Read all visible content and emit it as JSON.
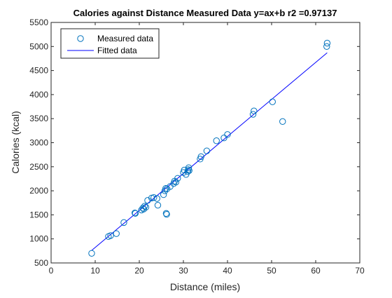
{
  "chart_data": {
    "type": "scatter",
    "title": "Calories against Distance Measured Data y=ax+b  r2 =0.97137",
    "xlabel": "Distance (miles)",
    "ylabel": "Calories (kcal)",
    "xlim": [
      0,
      70
    ],
    "ylim": [
      500,
      5500
    ],
    "xticks": [
      0,
      10,
      20,
      30,
      40,
      50,
      60,
      70
    ],
    "yticks": [
      500,
      1000,
      1500,
      2000,
      2500,
      3000,
      3500,
      4000,
      4500,
      5000,
      5500
    ],
    "grid": false,
    "legend_position": "top-left",
    "series": [
      {
        "name": "Measured data",
        "kind": "markers",
        "marker": "circle",
        "color": "#0072bd",
        "points": [
          [
            9.2,
            700
          ],
          [
            13.0,
            1050
          ],
          [
            13.5,
            1070
          ],
          [
            14.8,
            1110
          ],
          [
            16.5,
            1340
          ],
          [
            19.0,
            1540
          ],
          [
            19.1,
            1530
          ],
          [
            20.5,
            1600
          ],
          [
            20.8,
            1640
          ],
          [
            21.0,
            1620
          ],
          [
            21.2,
            1680
          ],
          [
            21.5,
            1660
          ],
          [
            21.9,
            1800
          ],
          [
            22.8,
            1850
          ],
          [
            23.3,
            1860
          ],
          [
            24.0,
            1840
          ],
          [
            24.2,
            1700
          ],
          [
            25.5,
            1920
          ],
          [
            25.8,
            2000
          ],
          [
            26.0,
            2050
          ],
          [
            26.3,
            2040
          ],
          [
            26.1,
            1530
          ],
          [
            26.2,
            1510
          ],
          [
            27.0,
            2090
          ],
          [
            27.8,
            2150
          ],
          [
            28.0,
            2200
          ],
          [
            28.3,
            2180
          ],
          [
            28.7,
            2260
          ],
          [
            30.0,
            2380
          ],
          [
            30.2,
            2430
          ],
          [
            30.6,
            2340
          ],
          [
            31.0,
            2400
          ],
          [
            31.1,
            2440
          ],
          [
            31.2,
            2480
          ],
          [
            31.3,
            2420
          ],
          [
            33.8,
            2660
          ],
          [
            34.0,
            2710
          ],
          [
            35.3,
            2830
          ],
          [
            37.5,
            3040
          ],
          [
            39.2,
            3100
          ],
          [
            40.0,
            3170
          ],
          [
            45.8,
            3590
          ],
          [
            46.0,
            3660
          ],
          [
            50.2,
            3850
          ],
          [
            52.5,
            3440
          ],
          [
            62.5,
            5000
          ],
          [
            62.6,
            5070
          ]
        ]
      },
      {
        "name": "Fitted data",
        "kind": "line",
        "color": "#0000ff",
        "points": [
          [
            9.2,
            760
          ],
          [
            62.6,
            4870
          ]
        ]
      }
    ]
  }
}
